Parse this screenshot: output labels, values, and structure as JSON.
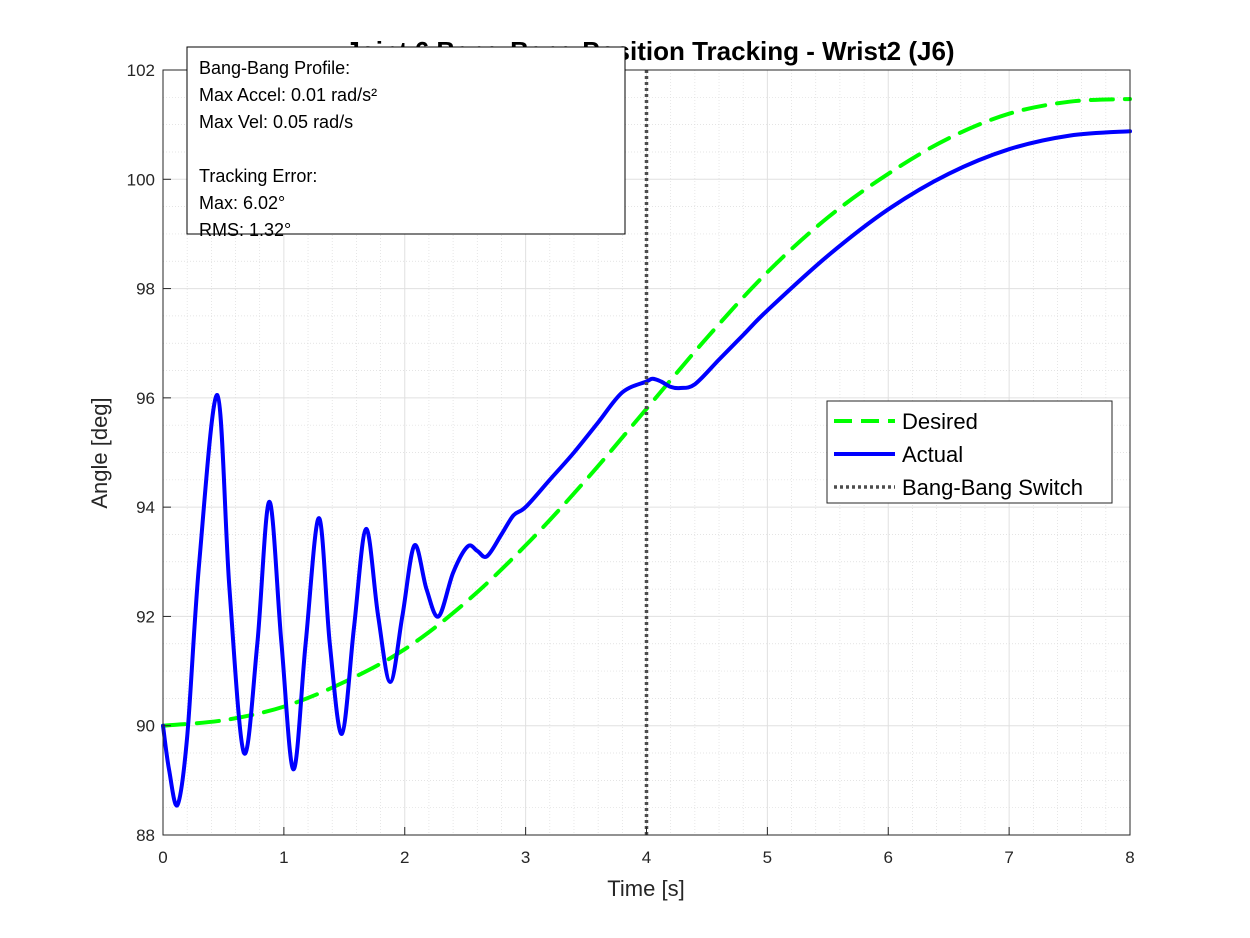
{
  "chart_data": {
    "type": "line",
    "title": "Joint 6 Bang-Bang Position Tracking - Wrist2 (J6)",
    "xlabel": "Time [s]",
    "ylabel": "Angle [deg]",
    "xlim": [
      0,
      8
    ],
    "ylim": [
      88,
      102
    ],
    "xticks": [
      0,
      1,
      2,
      3,
      4,
      5,
      6,
      7,
      8
    ],
    "yticks": [
      88,
      90,
      92,
      94,
      96,
      98,
      100,
      102
    ],
    "grid": true,
    "minor_grid": true,
    "legend_position": "right",
    "series": [
      {
        "name": "Desired",
        "style": "dashed",
        "color": "#00ff00",
        "x": [
          0,
          0.5,
          1.0,
          1.5,
          2.0,
          2.5,
          3.0,
          3.5,
          4.0,
          4.5,
          5.0,
          5.5,
          6.0,
          6.5,
          7.0,
          7.5,
          8.0
        ],
        "y": [
          90.0,
          90.1,
          90.35,
          90.8,
          91.4,
          92.25,
          93.3,
          94.5,
          95.8,
          97.1,
          98.3,
          99.3,
          100.1,
          100.75,
          101.2,
          101.42,
          101.47
        ]
      },
      {
        "name": "Actual",
        "style": "solid",
        "color": "#0000ff",
        "x": [
          0,
          0.05,
          0.12,
          0.2,
          0.3,
          0.45,
          0.55,
          0.67,
          0.78,
          0.88,
          0.98,
          1.08,
          1.18,
          1.29,
          1.38,
          1.48,
          1.58,
          1.68,
          1.78,
          1.88,
          1.98,
          2.08,
          2.18,
          2.28,
          2.4,
          2.52,
          2.6,
          2.68,
          2.8,
          2.9,
          3.0,
          3.2,
          3.4,
          3.6,
          3.8,
          4.0,
          4.05,
          4.12,
          4.2,
          4.28,
          4.4,
          4.6,
          4.8,
          5.0,
          5.5,
          6.0,
          6.5,
          7.0,
          7.5,
          8.0
        ],
        "y": [
          90.0,
          89.2,
          88.55,
          89.8,
          93.0,
          96.05,
          92.5,
          89.5,
          91.5,
          94.1,
          91.5,
          89.2,
          91.5,
          93.8,
          91.5,
          89.85,
          91.8,
          93.6,
          92.0,
          90.8,
          92.0,
          93.3,
          92.5,
          92.0,
          92.8,
          93.28,
          93.2,
          93.1,
          93.5,
          93.85,
          94.0,
          94.5,
          95.0,
          95.55,
          96.1,
          96.3,
          96.35,
          96.3,
          96.2,
          96.18,
          96.25,
          96.7,
          97.15,
          97.6,
          98.6,
          99.45,
          100.1,
          100.55,
          100.8,
          100.88
        ]
      },
      {
        "name": "Bang-Bang Switch",
        "style": "dotted",
        "color": "#4d4d4d",
        "x": [
          4,
          4
        ],
        "y": [
          88,
          102
        ]
      }
    ],
    "annotation": {
      "lines": [
        "Bang-Bang Profile:",
        "Max Accel: 0.01 rad/s²",
        "Max Vel: 0.05 rad/s",
        "",
        "Tracking Error:",
        "Max: 6.02°",
        "RMS: 1.32°"
      ]
    }
  }
}
